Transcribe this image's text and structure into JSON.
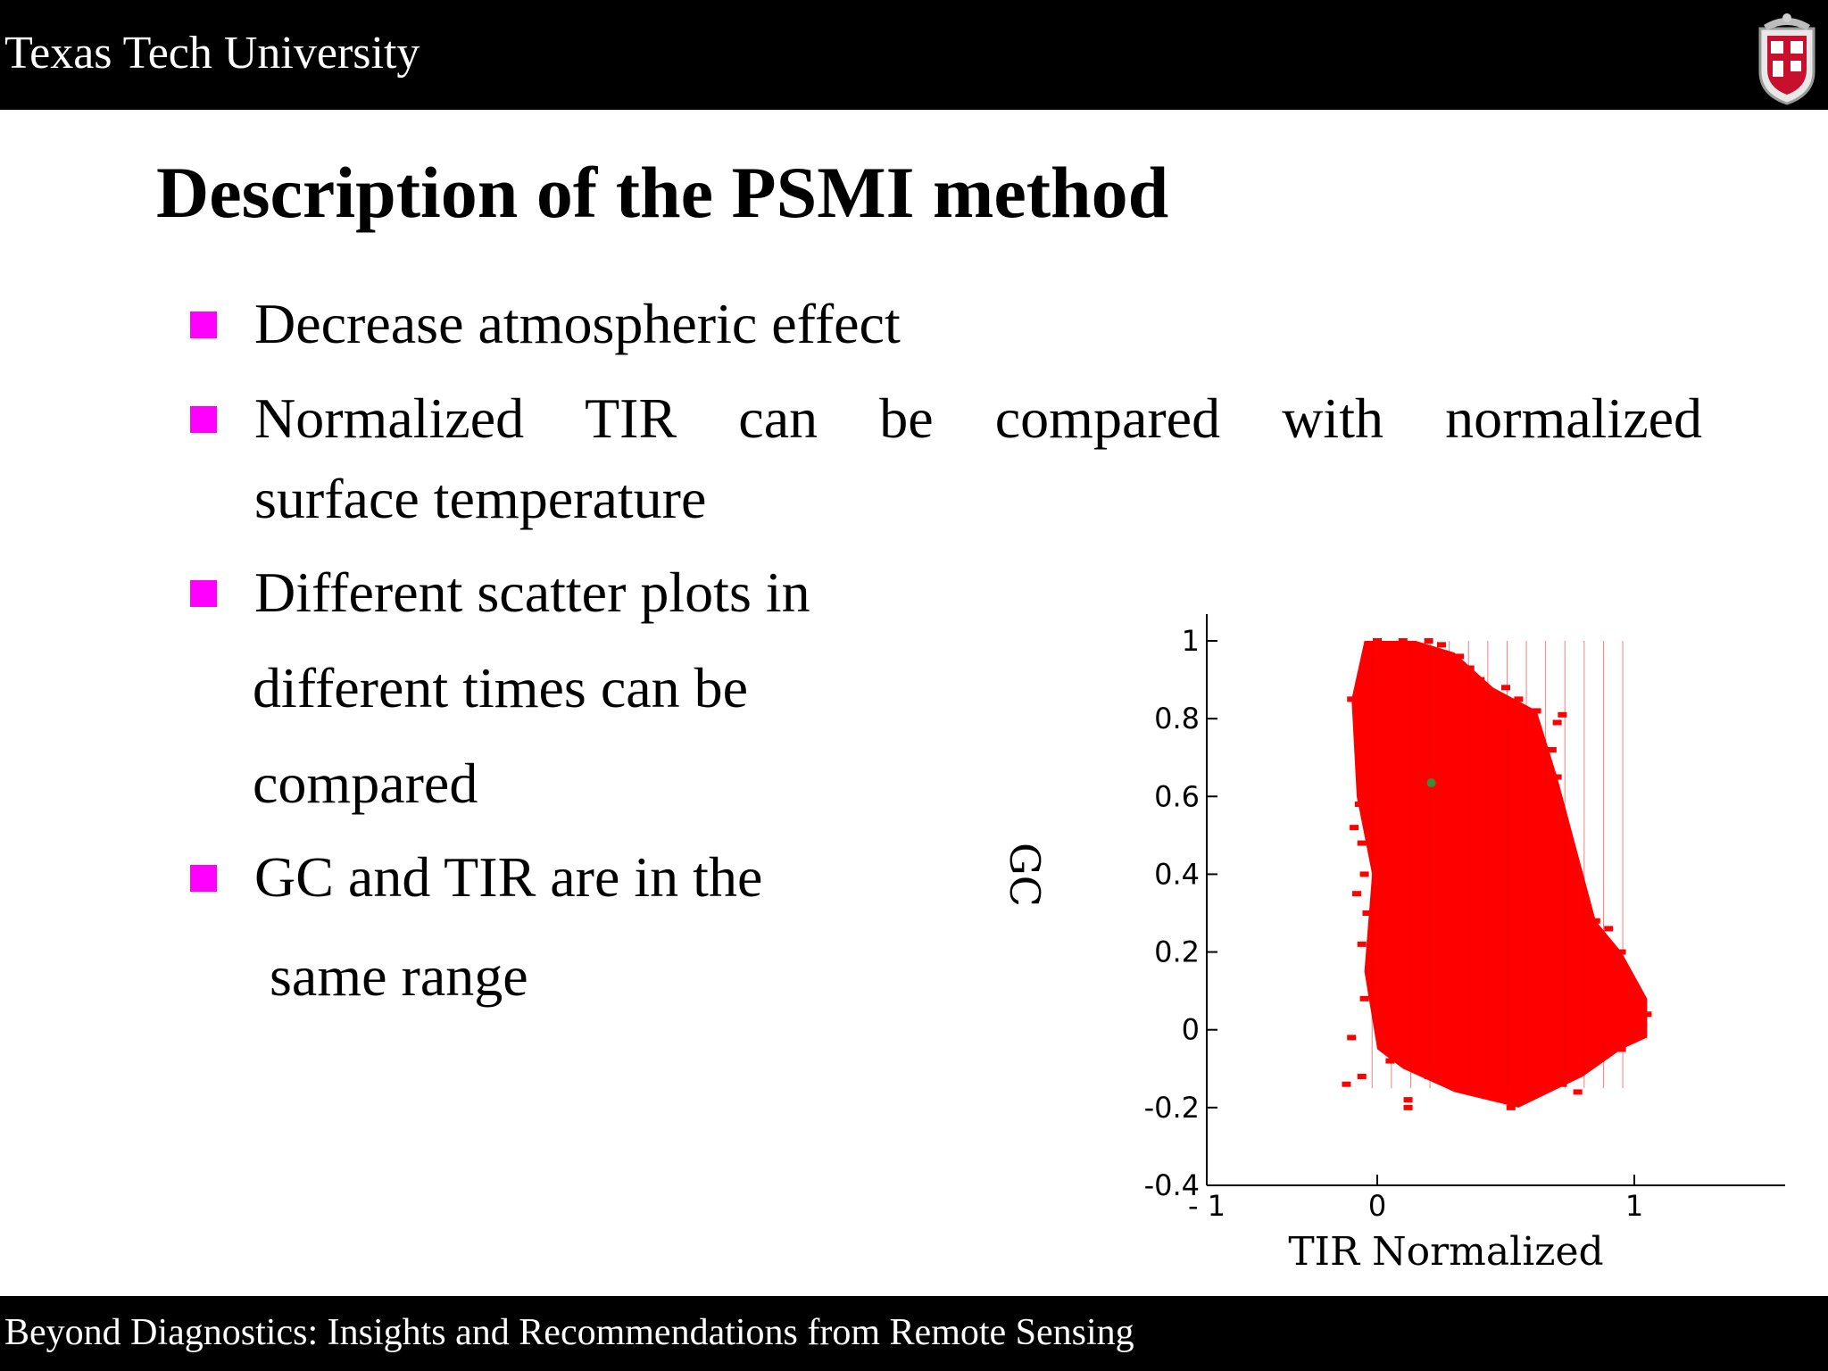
{
  "header": {
    "organization": "Texas Tech University"
  },
  "slide": {
    "title": "Description of the PSMI method",
    "bullets": [
      {
        "lines": [
          "Decrease atmospheric effect"
        ]
      },
      {
        "lines": [
          "Normalized TIR can be compared with normalized",
          "surface temperature"
        ]
      },
      {
        "lines": [
          "Different scatter plots in",
          "different times can be",
          "compared"
        ]
      },
      {
        "lines": [
          "GC and TIR are in the",
          "same range"
        ]
      }
    ]
  },
  "footer": {
    "text": "Beyond Diagnostics:  Insights and Recommendations from Remote Sensing"
  },
  "chart_data": {
    "type": "scatter",
    "xlabel": "TIR Normalized",
    "ylabel": "GC",
    "xlim": [
      -1,
      1.6
    ],
    "ylim": [
      -0.4,
      1.05
    ],
    "x_ticks": [
      -1,
      0,
      1
    ],
    "x_tick_labels": [
      "- 1",
      "0",
      "1"
    ],
    "y_ticks": [
      1,
      0.8,
      0.6,
      0.4,
      0.2,
      0,
      -0.2,
      -0.4
    ],
    "y_tick_labels": [
      "1",
      "0.8",
      "0.6",
      "0.4",
      "0.2",
      "0",
      "-0.2",
      "-0.4"
    ],
    "grid": false,
    "point_color": "#ff0000",
    "highlight_color": "#3a8a3a",
    "cloud_outline": [
      [
        -0.05,
        1.0
      ],
      [
        0.15,
        1.0
      ],
      [
        0.3,
        0.97
      ],
      [
        0.45,
        0.88
      ],
      [
        0.62,
        0.82
      ],
      [
        0.7,
        0.65
      ],
      [
        0.85,
        0.28
      ],
      [
        0.95,
        0.2
      ],
      [
        1.05,
        0.08
      ],
      [
        1.05,
        -0.02
      ],
      [
        0.95,
        -0.05
      ],
      [
        0.8,
        -0.12
      ],
      [
        0.55,
        -0.2
      ],
      [
        0.3,
        -0.16
      ],
      [
        0.1,
        -0.1
      ],
      [
        0.0,
        -0.05
      ],
      [
        -0.05,
        0.15
      ],
      [
        -0.02,
        0.4
      ],
      [
        -0.08,
        0.6
      ],
      [
        -0.1,
        0.85
      ]
    ],
    "series": [
      {
        "points": [
          [
            -0.1,
            0.85
          ],
          [
            -0.08,
            0.82
          ],
          [
            -0.07,
            0.58
          ],
          [
            -0.09,
            0.52
          ],
          [
            -0.06,
            0.48
          ],
          [
            -0.05,
            0.4
          ],
          [
            -0.08,
            0.35
          ],
          [
            -0.04,
            0.3
          ],
          [
            -0.06,
            0.22
          ],
          [
            -0.03,
            0.15
          ],
          [
            -0.05,
            0.08
          ],
          [
            -0.1,
            -0.02
          ],
          [
            -0.12,
            -0.14
          ],
          [
            -0.06,
            -0.12
          ],
          [
            0.05,
            -0.08
          ],
          [
            0.12,
            -0.18
          ],
          [
            0.12,
            -0.2
          ],
          [
            0.2,
            -0.12
          ],
          [
            0.35,
            -0.15
          ],
          [
            0.45,
            -0.17
          ],
          [
            0.52,
            -0.2
          ],
          [
            0.6,
            -0.17
          ],
          [
            0.72,
            -0.14
          ],
          [
            0.78,
            -0.16
          ],
          [
            0.88,
            -0.06
          ],
          [
            0.95,
            -0.05
          ],
          [
            1.02,
            0.0
          ],
          [
            1.05,
            0.04
          ],
          [
            1.02,
            0.08
          ],
          [
            0.98,
            0.12
          ],
          [
            0.95,
            0.2
          ],
          [
            0.9,
            0.26
          ],
          [
            0.85,
            0.28
          ],
          [
            0.72,
            0.55
          ],
          [
            0.7,
            0.65
          ],
          [
            0.68,
            0.72
          ],
          [
            0.62,
            0.82
          ],
          [
            0.7,
            0.79
          ],
          [
            0.72,
            0.81
          ],
          [
            0.55,
            0.85
          ],
          [
            0.5,
            0.88
          ],
          [
            0.45,
            0.86
          ],
          [
            0.4,
            0.9
          ],
          [
            0.36,
            0.93
          ],
          [
            0.32,
            0.96
          ],
          [
            0.25,
            0.99
          ],
          [
            0.2,
            1.0
          ],
          [
            0.1,
            1.0
          ],
          [
            0.0,
            1.0
          ],
          [
            0.5,
            0.8
          ],
          [
            0.6,
            0.75
          ],
          [
            0.55,
            0.6
          ]
        ]
      }
    ],
    "highlight_point": [
      0.21,
      0.635
    ]
  }
}
